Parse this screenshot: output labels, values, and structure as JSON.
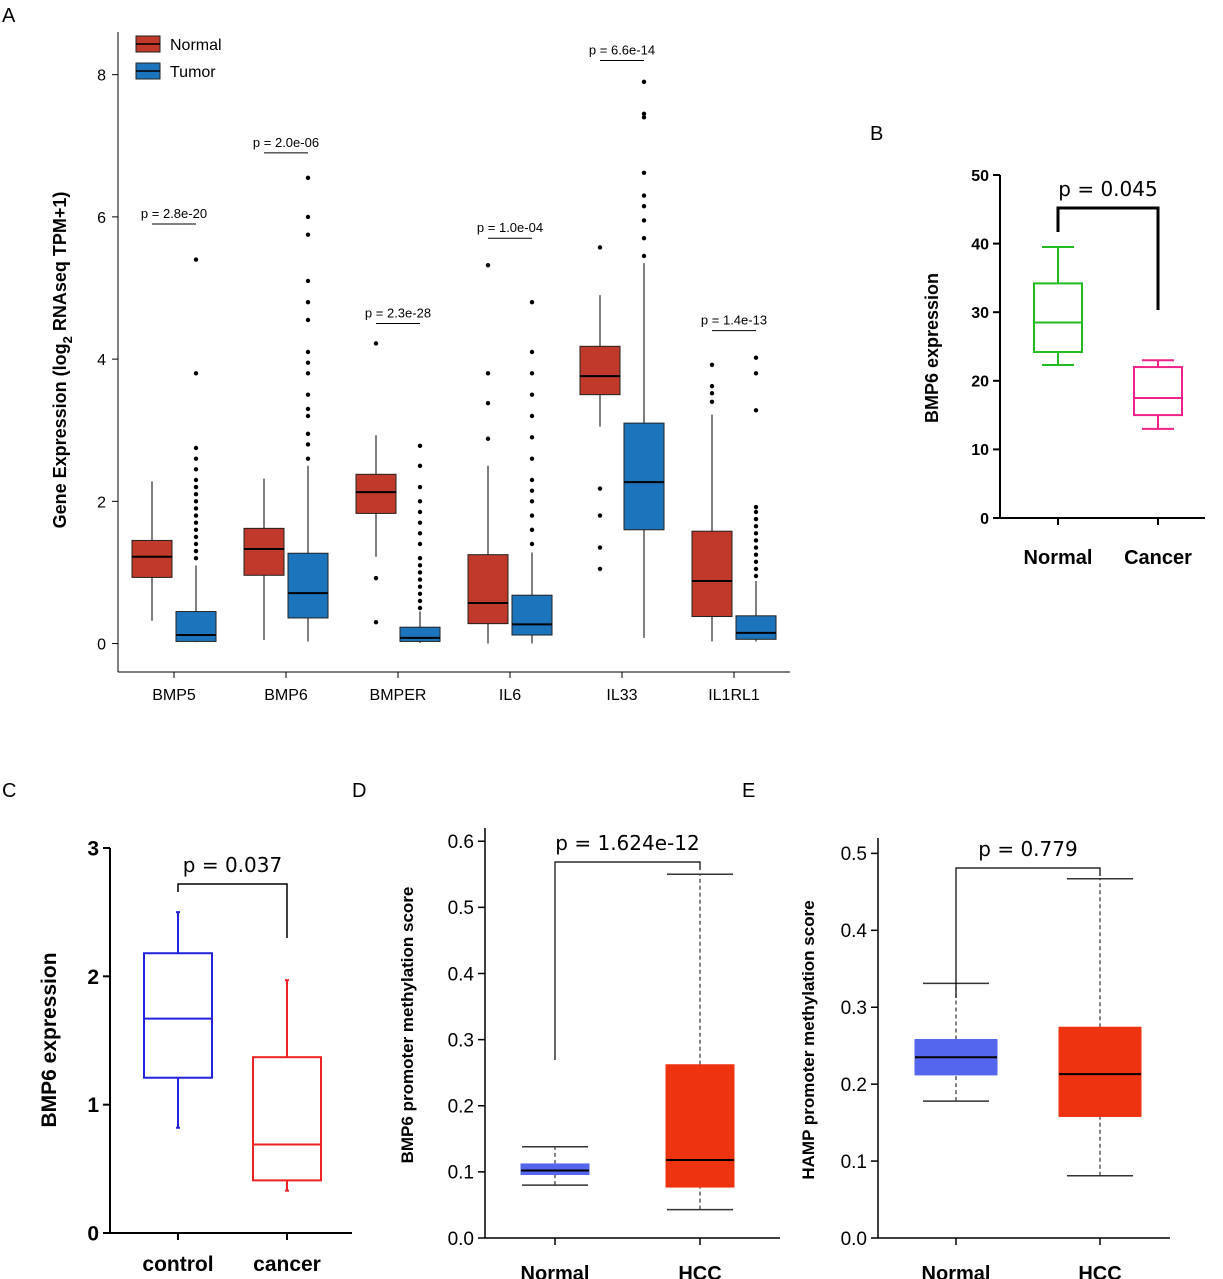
{
  "panel_labels": {
    "a": "A",
    "b": "B",
    "c": "C",
    "d": "D",
    "e": "E"
  },
  "chart_data": [
    {
      "id": "A",
      "type": "boxplot",
      "ylabel_pre": "Gene Expression (log",
      "ylabel_sub": "2",
      "ylabel_post": " RNAseq TPM+1)",
      "ylim": [
        -0.4,
        8.6
      ],
      "yticks": [
        0,
        2,
        4,
        6,
        8
      ],
      "categories": [
        "BMP5",
        "BMP6",
        "BMPER",
        "IL6",
        "IL33",
        "IL1RL1"
      ],
      "legend": [
        {
          "name": "Normal",
          "color": "#c0392b"
        },
        {
          "name": "Tumor",
          "color": "#1c75bc"
        }
      ],
      "pvalues": [
        "p = 2.8e-20",
        "p = 2.0e-06",
        "p = 2.3e-28",
        "p = 1.0e-04",
        "p = 6.6e-14",
        "p = 1.4e-13"
      ],
      "pvalue_levels": [
        5.9,
        6.9,
        4.5,
        5.7,
        8.2,
        4.4
      ],
      "groups": [
        {
          "normal": {
            "min": 0.32,
            "q1": 0.93,
            "median": 1.22,
            "q3": 1.45,
            "max": 2.28,
            "outliers": []
          },
          "tumor": {
            "min": 0.02,
            "q1": 0.03,
            "median": 0.12,
            "q3": 0.45,
            "max": 1.1,
            "outliers": [
              1.2,
              1.3,
              1.4,
              1.5,
              1.6,
              1.7,
              1.8,
              1.9,
              2.0,
              2.1,
              2.2,
              2.3,
              2.45,
              2.6,
              2.75,
              3.8,
              5.4
            ]
          }
        },
        {
          "normal": {
            "min": 0.05,
            "q1": 0.96,
            "median": 1.33,
            "q3": 1.62,
            "max": 2.32,
            "outliers": []
          },
          "tumor": {
            "min": 0.03,
            "q1": 0.36,
            "median": 0.71,
            "q3": 1.27,
            "max": 2.5,
            "outliers": [
              2.6,
              2.8,
              2.95,
              3.2,
              3.3,
              3.5,
              3.8,
              3.95,
              4.1,
              4.55,
              4.8,
              5.1,
              5.75,
              6.0,
              6.55
            ]
          }
        },
        {
          "normal": {
            "min": 1.22,
            "q1": 1.83,
            "median": 2.13,
            "q3": 2.38,
            "max": 2.93,
            "outliers": [
              0.3,
              0.92,
              4.22
            ]
          },
          "tumor": {
            "min": 0.01,
            "q1": 0.03,
            "median": 0.08,
            "q3": 0.23,
            "max": 0.45,
            "outliers": [
              0.5,
              0.6,
              0.7,
              0.8,
              0.9,
              1.0,
              1.1,
              1.2,
              1.4,
              1.55,
              1.7,
              1.85,
              2.0,
              2.2,
              2.5,
              2.78
            ]
          }
        },
        {
          "normal": {
            "min": 0.0,
            "q1": 0.28,
            "median": 0.57,
            "q3": 1.25,
            "max": 2.5,
            "outliers": [
              2.88,
              3.38,
              3.8,
              5.32
            ]
          },
          "tumor": {
            "min": 0.0,
            "q1": 0.12,
            "median": 0.27,
            "q3": 0.68,
            "max": 1.28,
            "outliers": [
              1.4,
              1.6,
              1.8,
              2.0,
              2.15,
              2.3,
              2.6,
              2.9,
              3.2,
              3.5,
              3.8,
              4.1,
              4.8
            ]
          }
        },
        {
          "normal": {
            "min": 3.05,
            "q1": 3.5,
            "median": 3.76,
            "q3": 4.18,
            "max": 4.9,
            "outliers": [
              1.05,
              1.35,
              1.8,
              2.18,
              5.57
            ]
          },
          "tumor": {
            "min": 0.08,
            "q1": 1.6,
            "median": 2.27,
            "q3": 3.1,
            "max": 5.35,
            "outliers": [
              5.45,
              5.7,
              5.95,
              6.15,
              6.3,
              6.62,
              7.4,
              7.45,
              7.9
            ]
          }
        },
        {
          "normal": {
            "min": 0.03,
            "q1": 0.38,
            "median": 0.88,
            "q3": 1.58,
            "max": 3.22,
            "outliers": [
              3.4,
              3.52,
              3.62,
              3.92
            ]
          },
          "tumor": {
            "min": 0.03,
            "q1": 0.06,
            "median": 0.15,
            "q3": 0.39,
            "max": 0.88,
            "outliers": [
              0.95,
              1.05,
              1.15,
              1.25,
              1.35,
              1.45,
              1.55,
              1.65,
              1.75,
              1.85,
              1.92,
              3.28,
              3.8,
              4.02
            ]
          }
        }
      ]
    },
    {
      "id": "B",
      "type": "boxplot",
      "ylabel": "BMP6 expression",
      "ylim": [
        0,
        50
      ],
      "yticks": [
        0,
        10,
        20,
        30,
        40,
        50
      ],
      "categories": [
        "Normal",
        "Cancer"
      ],
      "pvalue": "p = 0.045",
      "boxes": [
        {
          "name": "Normal",
          "color": "#22bb22",
          "min": 22.3,
          "q1": 24.2,
          "median": 28.5,
          "q3": 34.2,
          "max": 39.5
        },
        {
          "name": "Cancer",
          "color": "#ee2288",
          "min": 13.0,
          "q1": 15.0,
          "median": 17.5,
          "q3": 22.0,
          "max": 23.0
        }
      ]
    },
    {
      "id": "C",
      "type": "boxplot",
      "ylabel": "BMP6 expression",
      "ylim": [
        0,
        3
      ],
      "yticks": [
        0,
        1,
        2,
        3
      ],
      "categories": [
        "control",
        "cancer"
      ],
      "pvalue": "p = 0.037",
      "boxes": [
        {
          "name": "control",
          "color": "#2222dd",
          "min": 0.82,
          "q1": 1.21,
          "median": 1.67,
          "q3": 2.18,
          "max": 2.5
        },
        {
          "name": "cancer",
          "color": "#ee2222",
          "min": 0.33,
          "q1": 0.41,
          "median": 0.69,
          "q3": 1.37,
          "max": 1.97
        }
      ]
    },
    {
      "id": "D",
      "type": "boxplot",
      "ylabel": "BMP6 promoter methylation score",
      "ylim": [
        0,
        0.62
      ],
      "yticks": [
        0.0,
        0.1,
        0.2,
        0.3,
        0.4,
        0.5,
        0.6
      ],
      "categories": [
        "Normal",
        "HCC"
      ],
      "pvalue": "p = 1.624e-12",
      "boxes": [
        {
          "name": "Normal",
          "color": "#5566ee",
          "min": 0.08,
          "q1": 0.096,
          "median": 0.102,
          "q3": 0.112,
          "max": 0.138
        },
        {
          "name": "HCC",
          "color": "#ee3311",
          "min": 0.043,
          "q1": 0.077,
          "median": 0.118,
          "q3": 0.262,
          "max": 0.55
        }
      ]
    },
    {
      "id": "E",
      "type": "boxplot",
      "ylabel": "HAMP promoter methylation score",
      "ylim": [
        0,
        0.52
      ],
      "yticks": [
        0.0,
        0.1,
        0.2,
        0.3,
        0.4,
        0.5
      ],
      "categories": [
        "Normal",
        "HCC"
      ],
      "pvalue": "p = 0.779",
      "boxes": [
        {
          "name": "Normal",
          "color": "#5566ee",
          "min": 0.178,
          "q1": 0.212,
          "median": 0.235,
          "q3": 0.258,
          "max": 0.331
        },
        {
          "name": "HCC",
          "color": "#ee3311",
          "min": 0.081,
          "q1": 0.158,
          "median": 0.213,
          "q3": 0.274,
          "max": 0.467
        }
      ]
    }
  ]
}
